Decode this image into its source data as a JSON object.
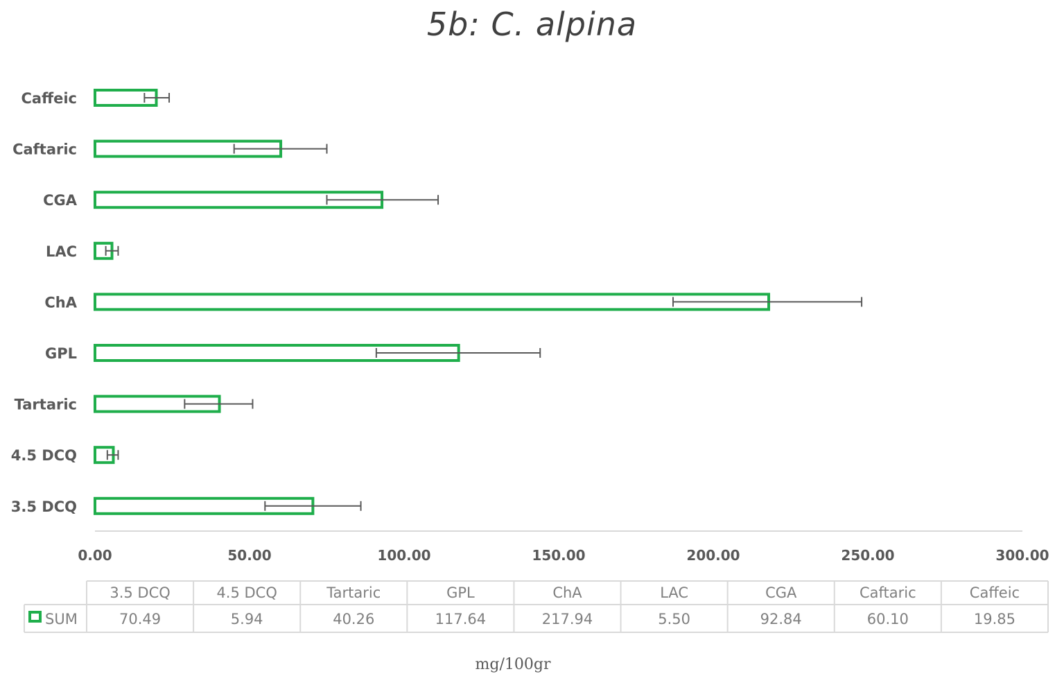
{
  "chart_data": {
    "type": "bar",
    "orientation": "horizontal",
    "title": "5b: C. alpina",
    "xlabel": "mg/100gr",
    "xlim": [
      0,
      300
    ],
    "xticks": [
      "0.00",
      "50.00",
      "100.00",
      "150.00",
      "200.00",
      "250.00",
      "300.00"
    ],
    "categories": [
      "3.5 DCQ",
      "4.5 DCQ",
      "Tartaric",
      "GPL",
      "ChA",
      "LAC",
      "CGA",
      "Caftaric",
      "Caffeic"
    ],
    "series": [
      {
        "name": "SUM",
        "values": [
          70.49,
          5.94,
          40.26,
          117.64,
          217.94,
          5.5,
          92.84,
          60.1,
          19.85
        ],
        "value_labels": [
          "70.49",
          "5.94",
          "40.26",
          "117.64",
          "217.94",
          "5.50",
          "92.84",
          "60.10",
          "19.85"
        ],
        "error_low": [
          55,
          4,
          29,
          91,
          187,
          3.5,
          75,
          45,
          16
        ],
        "error_high": [
          86,
          7.5,
          51,
          144,
          248,
          7.5,
          111,
          75,
          24
        ],
        "color": "#1fae4b"
      }
    ],
    "data_table": true,
    "grid": false
  }
}
